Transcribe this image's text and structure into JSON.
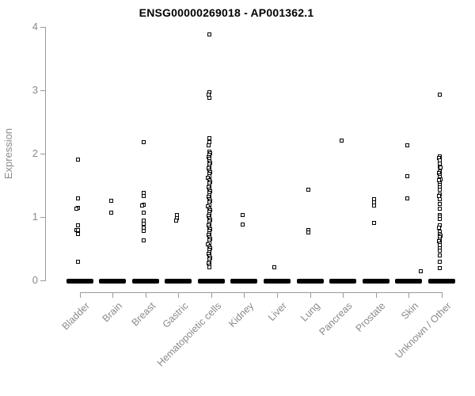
{
  "page": {
    "background": "#ffffff"
  },
  "chart_data": {
    "type": "scatter",
    "subtype": "strip-plot",
    "title": "ENSG00000269018 - AP001362.1",
    "xlabel": "",
    "ylabel": "Expression",
    "ylim": [
      0,
      4
    ],
    "yticks": [
      0,
      1,
      2,
      3,
      4
    ],
    "grid": false,
    "legend": false,
    "marker": "open-square",
    "colors": {
      "points": "#000000",
      "axis": "#9a9a9a",
      "text": "#8a8a8a",
      "title": "#000000"
    },
    "categories": [
      "Bladder",
      "Brain",
      "Breast",
      "Gastric",
      "Hematopoietic cells",
      "Kidney",
      "Liver",
      "Lung",
      "Pancreas",
      "Prostate",
      "Skin",
      "Unknown / Other"
    ],
    "note": "every category also has a large cluster of samples at expression 0 (rendered as a thick black bar); points format: value or [value, x-jitter-px]",
    "series": [
      {
        "category": "Bladder",
        "zero_cluster": true,
        "points": [
          1.91,
          1.3,
          1.15,
          [
            1.13,
            -2
          ],
          0.87,
          [
            0.8,
            -2
          ],
          0.8,
          0.74,
          0.3
        ]
      },
      {
        "category": "Brain",
        "zero_cluster": true,
        "points": [
          1.26,
          1.07
        ]
      },
      {
        "category": "Breast",
        "zero_cluster": true,
        "points": [
          2.19,
          1.39,
          1.34,
          1.2,
          [
            1.18,
            -2
          ],
          1.07,
          0.95,
          0.9,
          0.84,
          0.79,
          0.64
        ]
      },
      {
        "category": "Gastric",
        "zero_cluster": true,
        "points": [
          1.03,
          0.99,
          [
            0.95,
            -1
          ]
        ]
      },
      {
        "category": "Hematopoietic cells",
        "zero_cluster": true,
        "points": [
          3.88,
          2.97,
          [
            2.93,
            -1
          ],
          2.88,
          2.25,
          2.19,
          [
            2.13,
            -1
          ],
          2.04,
          [
            2.01,
            1
          ],
          1.98,
          [
            1.95,
            -1
          ],
          1.92,
          1.89,
          [
            1.86,
            1
          ],
          1.83,
          1.8,
          [
            1.77,
            -1
          ],
          1.74,
          [
            1.71,
            1
          ],
          1.68,
          1.65,
          [
            1.62,
            -2
          ],
          1.59,
          [
            1.56,
            1
          ],
          1.53,
          1.5,
          [
            1.47,
            -1
          ],
          1.44,
          [
            1.41,
            1
          ],
          1.38,
          1.35,
          [
            1.32,
            -1
          ],
          1.29,
          [
            1.26,
            1
          ],
          1.23,
          1.2,
          [
            1.17,
            -2
          ],
          1.14,
          [
            1.11,
            1
          ],
          1.08,
          1.05,
          [
            1.02,
            -1
          ],
          0.99,
          [
            0.96,
            1
          ],
          0.93,
          0.9,
          [
            0.87,
            -1
          ],
          0.84,
          [
            0.81,
            1
          ],
          0.78,
          0.75,
          [
            0.72,
            -1
          ],
          0.69,
          [
            0.66,
            1
          ],
          0.63,
          0.6,
          [
            0.57,
            -2
          ],
          0.54,
          [
            0.51,
            1
          ],
          0.48,
          0.45,
          [
            0.42,
            -1
          ],
          0.39,
          [
            0.36,
            1
          ],
          0.33,
          0.3,
          [
            0.27,
            -1
          ],
          0.24,
          0.21
        ]
      },
      {
        "category": "Kidney",
        "zero_cluster": true,
        "points": [
          1.03,
          0.88
        ]
      },
      {
        "category": "Liver",
        "zero_cluster": true,
        "points": [
          [
            0.21,
            -2
          ]
        ]
      },
      {
        "category": "Lung",
        "zero_cluster": true,
        "points": [
          1.43,
          0.8,
          0.76
        ]
      },
      {
        "category": "Pancreas",
        "zero_cluster": true,
        "points": [
          2.21
        ]
      },
      {
        "category": "Prostate",
        "zero_cluster": true,
        "points": [
          1.29,
          1.24,
          1.19,
          0.91
        ]
      },
      {
        "category": "Skin",
        "zero_cluster": true,
        "points": [
          2.14,
          1.65,
          1.3
        ]
      },
      {
        "category": "Unknown / Other",
        "zero_cluster": true,
        "points": [
          2.94,
          1.96,
          [
            1.93,
            -1
          ],
          1.9,
          1.85,
          1.8,
          [
            1.78,
            1
          ],
          1.72,
          [
            1.7,
            -1
          ],
          1.66,
          1.63,
          [
            1.6,
            1
          ],
          [
            1.58,
            -1
          ],
          1.54,
          1.51,
          1.47,
          1.44,
          1.36,
          [
            1.33,
            -1
          ],
          1.28,
          1.21,
          1.14,
          1.04,
          1.01,
          0.97,
          0.87,
          [
            0.84,
            -1
          ],
          0.77,
          0.74,
          [
            0.71,
            1
          ],
          0.68,
          0.65,
          [
            0.62,
            -1
          ],
          0.59,
          0.56,
          0.51,
          0.47,
          0.4,
          0.3,
          0.2,
          [
            0.145,
            -24
          ]
        ]
      }
    ]
  }
}
